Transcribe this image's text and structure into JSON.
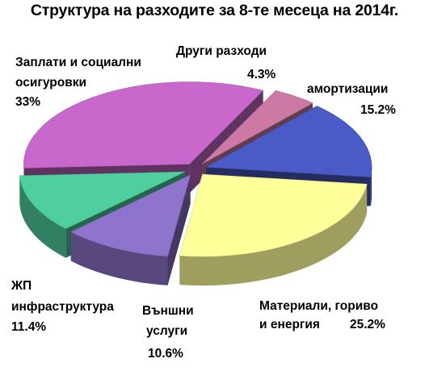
{
  "chart_data": {
    "type": "pie",
    "title": "Структура на разходите за 8-те месеца на 2014г.",
    "slices": [
      {
        "label": "амортизации",
        "percent_label": "15.2%",
        "value": 15.2,
        "color": "#4A5BC7"
      },
      {
        "label": "Материали, гориво и енергия",
        "percent_label": "25.2%",
        "value": 25.2,
        "color": "#FFFF99"
      },
      {
        "label": "Външни услуги",
        "percent_label": "10.6%",
        "value": 10.6,
        "color": "#8E74CC"
      },
      {
        "label": "ЖП инфраструктура",
        "percent_label": "11.4%",
        "value": 11.4,
        "color": "#4FCF9E"
      },
      {
        "label": "Заплати и социални осигуровки",
        "percent_label": "33%",
        "value": 33,
        "color": "#C868CC"
      },
      {
        "label": "Други разходи",
        "percent_label": "4.3%",
        "value": 4.3,
        "color": "#CC7AA5"
      }
    ],
    "legend": "none",
    "style": "3d exploded"
  },
  "labels": {
    "amort_line1": "амортизации",
    "amort_line2": "15.2%",
    "mat_line1": "Материали, гориво",
    "mat_line2": "и енергия",
    "mat_line3": "25.2%",
    "ext_line1": "Външни",
    "ext_line2": "услуги",
    "ext_line3": "10.6%",
    "rail_line1": "ЖП",
    "rail_line2": "инфраструктура",
    "rail_line3": "11.4%",
    "sal_line1": "Заплати и социални",
    "sal_line2": "осигуровки",
    "sal_line3": "33%",
    "other_line1": "Други разходи",
    "other_line2": "4.3%"
  }
}
